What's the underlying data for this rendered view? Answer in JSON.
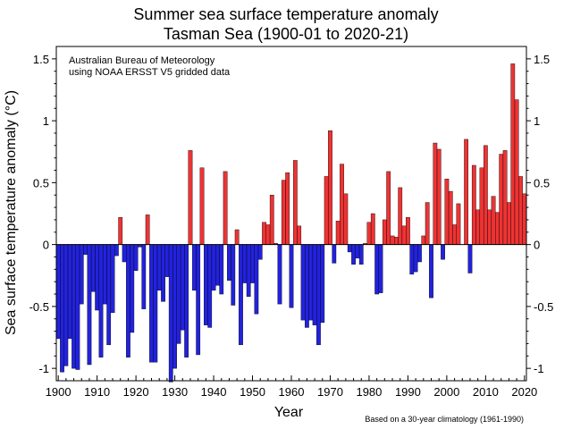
{
  "chart_data": {
    "type": "bar",
    "title": "Summer sea surface temperature anomaly",
    "subtitle": "Tasman Sea (1900-01 to 2020-21)",
    "xlabel": "Year",
    "ylabel": "Sea surface temperature anomaly (°C)",
    "annotation_lines": [
      "Australian Bureau of Meteorology",
      "using NOAA ERSST V5 gridded data"
    ],
    "footnote": "Based on a 30-year climatology (1961-1990)",
    "xlim": [
      1899.5,
      2020.5
    ],
    "ylim": [
      -1.1,
      1.6
    ],
    "xticks": [
      1900,
      1910,
      1920,
      1930,
      1940,
      1950,
      1960,
      1970,
      1980,
      1990,
      2000,
      2010,
      2020
    ],
    "yticks": [
      1.5,
      1,
      0.5,
      0,
      -0.5,
      -1
    ],
    "ytick_labels": [
      "1.5",
      "1",
      "0.5",
      "0",
      "-0.5",
      "-1"
    ],
    "positive_color": "#ee3333",
    "negative_color": "#2222dd",
    "start_year": 1900,
    "years": [
      1900,
      1901,
      1902,
      1903,
      1904,
      1905,
      1906,
      1907,
      1908,
      1909,
      1910,
      1911,
      1912,
      1913,
      1914,
      1915,
      1916,
      1917,
      1918,
      1919,
      1920,
      1921,
      1922,
      1923,
      1924,
      1925,
      1926,
      1927,
      1928,
      1929,
      1930,
      1931,
      1932,
      1933,
      1934,
      1935,
      1936,
      1937,
      1938,
      1939,
      1940,
      1941,
      1942,
      1943,
      1944,
      1945,
      1946,
      1947,
      1948,
      1949,
      1950,
      1951,
      1952,
      1953,
      1954,
      1955,
      1956,
      1957,
      1958,
      1959,
      1960,
      1961,
      1962,
      1963,
      1964,
      1965,
      1966,
      1967,
      1968,
      1969,
      1970,
      1971,
      1972,
      1973,
      1974,
      1975,
      1976,
      1977,
      1978,
      1979,
      1980,
      1981,
      1982,
      1983,
      1984,
      1985,
      1986,
      1987,
      1988,
      1989,
      1990,
      1991,
      1992,
      1993,
      1994,
      1995,
      1996,
      1997,
      1998,
      1999,
      2000,
      2001,
      2002,
      2003,
      2004,
      2005,
      2006,
      2007,
      2008,
      2009,
      2010,
      2011,
      2012,
      2013,
      2014,
      2015,
      2016,
      2017,
      2018,
      2019,
      2020
    ],
    "values": [
      -0.76,
      -1.03,
      -0.98,
      -0.76,
      -1.0,
      -1.01,
      -0.48,
      -0.08,
      -0.97,
      -0.38,
      -0.53,
      -0.91,
      -0.48,
      -0.81,
      -0.55,
      -0.09,
      0.22,
      -0.14,
      -0.91,
      -0.71,
      -0.21,
      -0.02,
      -0.52,
      0.24,
      -0.95,
      -0.95,
      -0.37,
      -0.46,
      -0.26,
      -1.11,
      -1.0,
      -0.8,
      -0.69,
      -0.91,
      0.76,
      -0.37,
      -0.89,
      0.62,
      -0.65,
      -0.67,
      -0.37,
      -0.33,
      -0.4,
      0.59,
      -0.29,
      -0.49,
      0.12,
      -0.81,
      -0.31,
      -0.42,
      -0.31,
      -0.56,
      -0.12,
      0.18,
      0.16,
      0.4,
      0.01,
      -0.48,
      0.52,
      0.58,
      -0.51,
      0.68,
      0.15,
      -0.61,
      -0.67,
      -0.61,
      -0.65,
      -0.81,
      -0.63,
      0.55,
      0.92,
      -0.15,
      0.19,
      0.65,
      0.41,
      -0.06,
      -0.16,
      -0.11,
      -0.16,
      0.01,
      0.18,
      0.25,
      -0.4,
      -0.39,
      0.2,
      0.59,
      0.07,
      0.06,
      0.46,
      0.15,
      0.22,
      -0.24,
      -0.22,
      -0.14,
      0.07,
      0.34,
      -0.43,
      0.82,
      0.77,
      -0.12,
      0.53,
      0.43,
      0.16,
      0.33,
      0.0,
      0.85,
      -0.23,
      0.64,
      0.28,
      0.62,
      0.8,
      0.28,
      0.39,
      0.26,
      0.73,
      0.76,
      0.34,
      1.46,
      1.17,
      0.55,
      0.41
    ]
  }
}
